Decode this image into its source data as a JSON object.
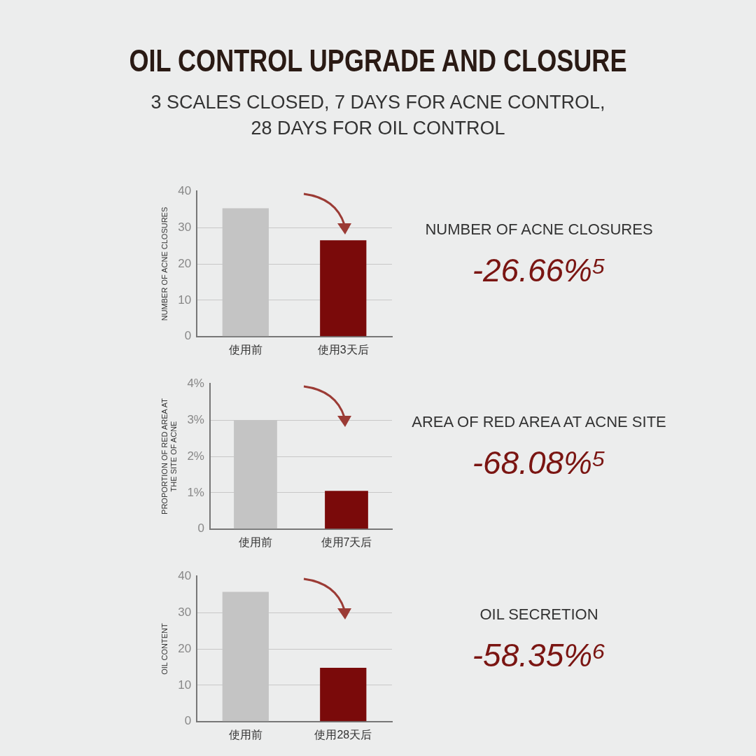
{
  "chart_data": [
    {
      "type": "bar",
      "title": "OIL CONTROL UPGRADE AND CLOSURE",
      "subtitle": "3 SCALES CLOSED, 7 DAYS FOR ACNE CONTROL,\n28 DAYS FOR OIL CONTROL",
      "ylabel": "NUMBER OF ACNE CLOSURES",
      "categories": [
        "使用前",
        "使用3天后"
      ],
      "values": [
        35.3,
        26.5
      ],
      "colors": [
        "#c4c4c4",
        "#7a0a0a"
      ],
      "ylim": [
        0,
        40
      ],
      "yticks": [
        0,
        10,
        20,
        30,
        40
      ],
      "grid": "y",
      "annotations": [
        "NUMBER OF ACNE CLOSURES",
        "-26.66%⁵"
      ]
    },
    {
      "type": "bar",
      "ylabel": "PROPORTION OF RED AREA AT THE SITE OF ACNE",
      "categories": [
        "使用前",
        "使用7天后"
      ],
      "values": [
        3,
        1.05
      ],
      "colors": [
        "#c4c4c4",
        "#7a0a0a"
      ],
      "ylim": [
        0,
        4
      ],
      "yticks": [
        0,
        {
          "value": 1,
          "label": "1%"
        },
        {
          "value": 2,
          "label": "2%"
        },
        {
          "value": 3,
          "label": "3%"
        },
        {
          "value": 4,
          "label": "4%"
        }
      ],
      "grid": "y",
      "annotations": [
        "AREA OF RED AREA AT ACNE SITE",
        "-68.08%⁵"
      ]
    },
    {
      "type": "bar",
      "ylabel": "OIL CONTENT",
      "categories": [
        "使用前",
        "使用28天后"
      ],
      "values": [
        35.7,
        14.8
      ],
      "colors": [
        "#c4c4c4",
        "#7a0a0a"
      ],
      "ylim": [
        0,
        40
      ],
      "yticks": [
        0,
        10,
        20,
        30,
        40
      ],
      "grid": "y",
      "annotations": [
        "OIL SECRETION",
        "-58.35%⁶"
      ]
    }
  ]
}
